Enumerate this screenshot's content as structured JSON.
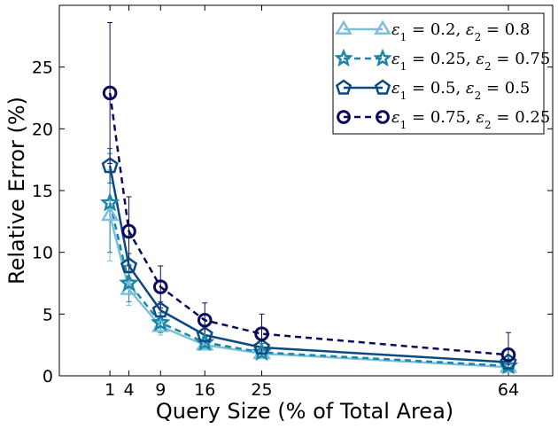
{
  "chart_data": {
    "type": "line",
    "title": "",
    "xlabel": "Query Size (% of Total Area)",
    "ylabel": "Relative Error (%)",
    "xlim": [
      -7,
      71
    ],
    "ylim": [
      0,
      30
    ],
    "x": [
      1,
      4,
      9,
      16,
      25,
      64
    ],
    "xticks": [
      1,
      4,
      9,
      16,
      25,
      64
    ],
    "xtick_labels": [
      "1",
      "4",
      "9",
      "16",
      "25",
      "64"
    ],
    "yticks": [
      0,
      5,
      10,
      15,
      20,
      25
    ],
    "ytick_labels": [
      "0",
      "5",
      "10",
      "15",
      "20",
      "25"
    ],
    "grid": false,
    "legend_position": "top-right",
    "series": [
      {
        "name": "ε1 = 0.2, ε2 = 0.8",
        "label_parts": [
          "0.2",
          "0.8"
        ],
        "color": "#7ec0d8",
        "linestyle": "solid",
        "marker": "triangle",
        "values": [
          13.0,
          7.0,
          4.0,
          2.5,
          1.8,
          0.7
        ],
        "errors": [
          3.7,
          1.3,
          0.7,
          0.4,
          0.3,
          0.2
        ]
      },
      {
        "name": "ε1 = 0.25, ε2 = 0.75",
        "label_parts": [
          "0.25",
          "0.75"
        ],
        "color": "#1a86a8",
        "linestyle": "dashed",
        "marker": "star",
        "values": [
          14.0,
          7.5,
          4.3,
          2.7,
          1.9,
          0.8
        ],
        "errors": [
          4.0,
          1.5,
          0.8,
          0.5,
          0.4,
          0.2
        ]
      },
      {
        "name": "ε1 = 0.5, ε2 = 0.5",
        "label_parts": [
          "0.5",
          "0.5"
        ],
        "color": "#0a4a80",
        "linestyle": "solid",
        "marker": "pentagon",
        "values": [
          17.0,
          8.9,
          5.3,
          3.3,
          2.3,
          1.1
        ],
        "errors": [
          1.4,
          1.0,
          0.7,
          0.5,
          0.3,
          0.2
        ]
      },
      {
        "name": "ε1 = 0.75, ε2 = 0.25",
        "label_parts": [
          "0.75",
          "0.25"
        ],
        "color": "#0b0b5e",
        "linestyle": "dashed",
        "marker": "circle",
        "values": [
          22.9,
          11.7,
          7.2,
          4.5,
          3.4,
          1.7
        ],
        "errors": [
          5.7,
          2.8,
          1.7,
          1.4,
          1.6,
          1.8
        ]
      }
    ]
  }
}
